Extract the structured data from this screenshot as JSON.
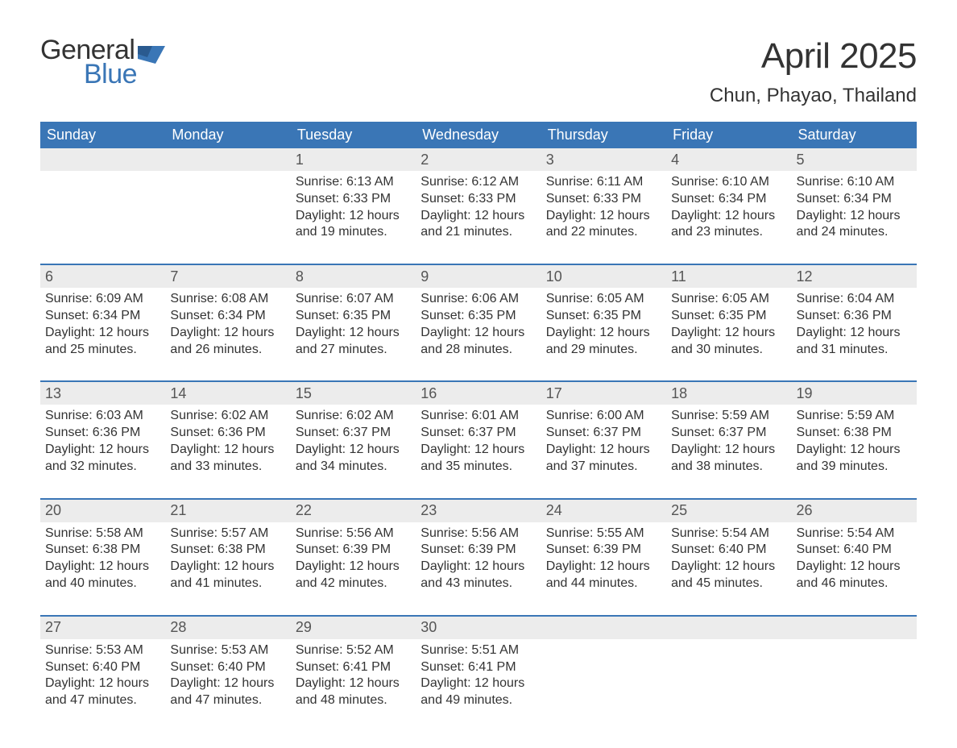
{
  "logo": {
    "text_top": "General",
    "text_bottom": "Blue",
    "color_dark": "#333333",
    "color_blue": "#3a76b6"
  },
  "title": {
    "month": "April 2025",
    "location": "Chun, Phayao, Thailand"
  },
  "colors": {
    "header_bg": "#3a76b6",
    "header_text": "#ffffff",
    "daynum_bg": "#ececec",
    "daynum_text": "#555555",
    "body_text": "#333333",
    "week_border": "#3a76b6",
    "page_bg": "#ffffff"
  },
  "typography": {
    "month_title_fontsize": 44,
    "location_fontsize": 24,
    "header_cell_fontsize": 18,
    "daynum_fontsize": 18,
    "daydata_fontsize": 16
  },
  "weekday_headers": [
    "Sunday",
    "Monday",
    "Tuesday",
    "Wednesday",
    "Thursday",
    "Friday",
    "Saturday"
  ],
  "weeks": [
    {
      "days": [
        null,
        null,
        {
          "num": "1",
          "sunrise": "Sunrise: 6:13 AM",
          "sunset": "Sunset: 6:33 PM",
          "daylight1": "Daylight: 12 hours",
          "daylight2": "and 19 minutes."
        },
        {
          "num": "2",
          "sunrise": "Sunrise: 6:12 AM",
          "sunset": "Sunset: 6:33 PM",
          "daylight1": "Daylight: 12 hours",
          "daylight2": "and 21 minutes."
        },
        {
          "num": "3",
          "sunrise": "Sunrise: 6:11 AM",
          "sunset": "Sunset: 6:33 PM",
          "daylight1": "Daylight: 12 hours",
          "daylight2": "and 22 minutes."
        },
        {
          "num": "4",
          "sunrise": "Sunrise: 6:10 AM",
          "sunset": "Sunset: 6:34 PM",
          "daylight1": "Daylight: 12 hours",
          "daylight2": "and 23 minutes."
        },
        {
          "num": "5",
          "sunrise": "Sunrise: 6:10 AM",
          "sunset": "Sunset: 6:34 PM",
          "daylight1": "Daylight: 12 hours",
          "daylight2": "and 24 minutes."
        }
      ]
    },
    {
      "days": [
        {
          "num": "6",
          "sunrise": "Sunrise: 6:09 AM",
          "sunset": "Sunset: 6:34 PM",
          "daylight1": "Daylight: 12 hours",
          "daylight2": "and 25 minutes."
        },
        {
          "num": "7",
          "sunrise": "Sunrise: 6:08 AM",
          "sunset": "Sunset: 6:34 PM",
          "daylight1": "Daylight: 12 hours",
          "daylight2": "and 26 minutes."
        },
        {
          "num": "8",
          "sunrise": "Sunrise: 6:07 AM",
          "sunset": "Sunset: 6:35 PM",
          "daylight1": "Daylight: 12 hours",
          "daylight2": "and 27 minutes."
        },
        {
          "num": "9",
          "sunrise": "Sunrise: 6:06 AM",
          "sunset": "Sunset: 6:35 PM",
          "daylight1": "Daylight: 12 hours",
          "daylight2": "and 28 minutes."
        },
        {
          "num": "10",
          "sunrise": "Sunrise: 6:05 AM",
          "sunset": "Sunset: 6:35 PM",
          "daylight1": "Daylight: 12 hours",
          "daylight2": "and 29 minutes."
        },
        {
          "num": "11",
          "sunrise": "Sunrise: 6:05 AM",
          "sunset": "Sunset: 6:35 PM",
          "daylight1": "Daylight: 12 hours",
          "daylight2": "and 30 minutes."
        },
        {
          "num": "12",
          "sunrise": "Sunrise: 6:04 AM",
          "sunset": "Sunset: 6:36 PM",
          "daylight1": "Daylight: 12 hours",
          "daylight2": "and 31 minutes."
        }
      ]
    },
    {
      "days": [
        {
          "num": "13",
          "sunrise": "Sunrise: 6:03 AM",
          "sunset": "Sunset: 6:36 PM",
          "daylight1": "Daylight: 12 hours",
          "daylight2": "and 32 minutes."
        },
        {
          "num": "14",
          "sunrise": "Sunrise: 6:02 AM",
          "sunset": "Sunset: 6:36 PM",
          "daylight1": "Daylight: 12 hours",
          "daylight2": "and 33 minutes."
        },
        {
          "num": "15",
          "sunrise": "Sunrise: 6:02 AM",
          "sunset": "Sunset: 6:37 PM",
          "daylight1": "Daylight: 12 hours",
          "daylight2": "and 34 minutes."
        },
        {
          "num": "16",
          "sunrise": "Sunrise: 6:01 AM",
          "sunset": "Sunset: 6:37 PM",
          "daylight1": "Daylight: 12 hours",
          "daylight2": "and 35 minutes."
        },
        {
          "num": "17",
          "sunrise": "Sunrise: 6:00 AM",
          "sunset": "Sunset: 6:37 PM",
          "daylight1": "Daylight: 12 hours",
          "daylight2": "and 37 minutes."
        },
        {
          "num": "18",
          "sunrise": "Sunrise: 5:59 AM",
          "sunset": "Sunset: 6:37 PM",
          "daylight1": "Daylight: 12 hours",
          "daylight2": "and 38 minutes."
        },
        {
          "num": "19",
          "sunrise": "Sunrise: 5:59 AM",
          "sunset": "Sunset: 6:38 PM",
          "daylight1": "Daylight: 12 hours",
          "daylight2": "and 39 minutes."
        }
      ]
    },
    {
      "days": [
        {
          "num": "20",
          "sunrise": "Sunrise: 5:58 AM",
          "sunset": "Sunset: 6:38 PM",
          "daylight1": "Daylight: 12 hours",
          "daylight2": "and 40 minutes."
        },
        {
          "num": "21",
          "sunrise": "Sunrise: 5:57 AM",
          "sunset": "Sunset: 6:38 PM",
          "daylight1": "Daylight: 12 hours",
          "daylight2": "and 41 minutes."
        },
        {
          "num": "22",
          "sunrise": "Sunrise: 5:56 AM",
          "sunset": "Sunset: 6:39 PM",
          "daylight1": "Daylight: 12 hours",
          "daylight2": "and 42 minutes."
        },
        {
          "num": "23",
          "sunrise": "Sunrise: 5:56 AM",
          "sunset": "Sunset: 6:39 PM",
          "daylight1": "Daylight: 12 hours",
          "daylight2": "and 43 minutes."
        },
        {
          "num": "24",
          "sunrise": "Sunrise: 5:55 AM",
          "sunset": "Sunset: 6:39 PM",
          "daylight1": "Daylight: 12 hours",
          "daylight2": "and 44 minutes."
        },
        {
          "num": "25",
          "sunrise": "Sunrise: 5:54 AM",
          "sunset": "Sunset: 6:40 PM",
          "daylight1": "Daylight: 12 hours",
          "daylight2": "and 45 minutes."
        },
        {
          "num": "26",
          "sunrise": "Sunrise: 5:54 AM",
          "sunset": "Sunset: 6:40 PM",
          "daylight1": "Daylight: 12 hours",
          "daylight2": "and 46 minutes."
        }
      ]
    },
    {
      "days": [
        {
          "num": "27",
          "sunrise": "Sunrise: 5:53 AM",
          "sunset": "Sunset: 6:40 PM",
          "daylight1": "Daylight: 12 hours",
          "daylight2": "and 47 minutes."
        },
        {
          "num": "28",
          "sunrise": "Sunrise: 5:53 AM",
          "sunset": "Sunset: 6:40 PM",
          "daylight1": "Daylight: 12 hours",
          "daylight2": "and 47 minutes."
        },
        {
          "num": "29",
          "sunrise": "Sunrise: 5:52 AM",
          "sunset": "Sunset: 6:41 PM",
          "daylight1": "Daylight: 12 hours",
          "daylight2": "and 48 minutes."
        },
        {
          "num": "30",
          "sunrise": "Sunrise: 5:51 AM",
          "sunset": "Sunset: 6:41 PM",
          "daylight1": "Daylight: 12 hours",
          "daylight2": "and 49 minutes."
        },
        null,
        null,
        null
      ]
    }
  ]
}
